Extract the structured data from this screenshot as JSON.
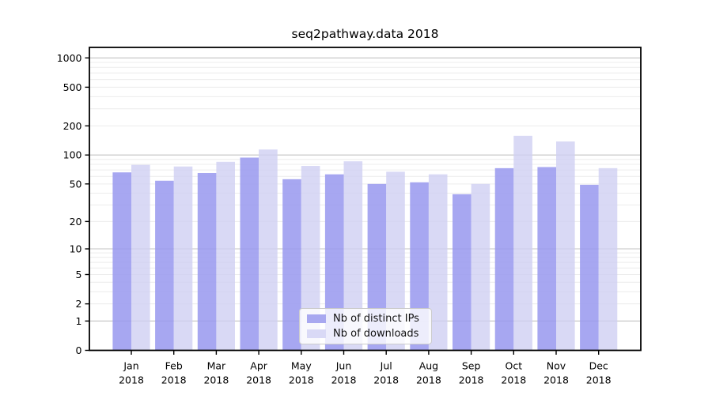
{
  "chart_data": {
    "type": "bar",
    "title": "seq2pathway.data 2018",
    "categories": [
      "Jan",
      "Feb",
      "Mar",
      "Apr",
      "May",
      "Jun",
      "Jul",
      "Aug",
      "Sep",
      "Oct",
      "Nov",
      "Dec"
    ],
    "category_year": "2018",
    "series": [
      {
        "name": "Nb of distinct IPs",
        "color": "#a8a8f0",
        "values": [
          66,
          54,
          65,
          94,
          56,
          63,
          50,
          52,
          39,
          73,
          75,
          49
        ]
      },
      {
        "name": "Nb of downloads",
        "color": "#d9d9f6",
        "values": [
          79,
          76,
          85,
          114,
          77,
          86,
          67,
          63,
          50,
          158,
          138,
          73
        ]
      }
    ],
    "yscale": "log10(1+x)",
    "yticks": [
      0,
      1,
      2,
      5,
      10,
      20,
      50,
      100,
      200,
      500,
      1000
    ],
    "major_gridlines": [
      1,
      10,
      100,
      1000
    ],
    "minor_gridlines": [
      2,
      3,
      4,
      5,
      6,
      7,
      8,
      9,
      20,
      30,
      40,
      50,
      60,
      70,
      80,
      90,
      200,
      300,
      400,
      500,
      600,
      700,
      800,
      900
    ],
    "ylim": [
      0,
      1300
    ],
    "xlabel": "",
    "ylabel": "",
    "grid": "horizontal",
    "legend_position": "inside-bottom-center",
    "background_color": "#ffffff",
    "frame_color": "#000000",
    "major_grid_color": "#c3c3c3",
    "minor_grid_color": "#ececec"
  }
}
